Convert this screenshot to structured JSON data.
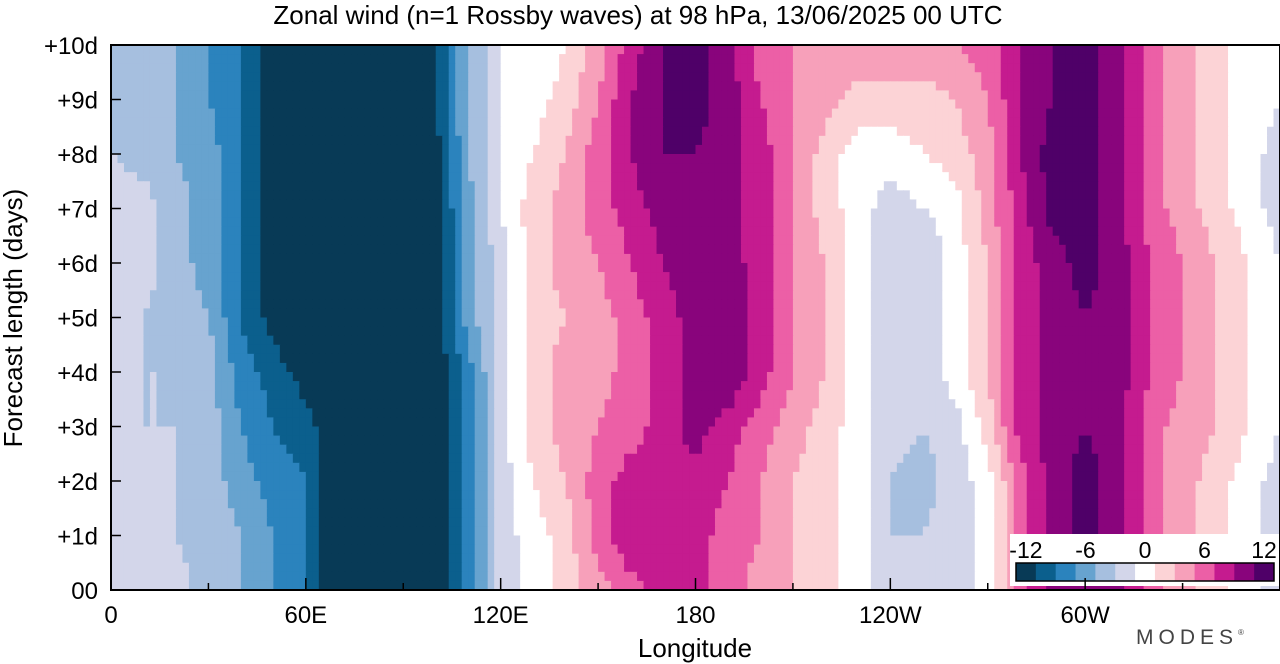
{
  "chart_data": {
    "type": "heatmap",
    "title": "Zonal wind (n=1 Rossby waves) at 98 hPa,  13/06/2025  00 UTC",
    "xlabel": "Longitude",
    "ylabel": "Forecast length (days)",
    "x_ticks": [
      {
        "lon": 0,
        "label": "0"
      },
      {
        "lon": 60,
        "label": "60E"
      },
      {
        "lon": 120,
        "label": "120E"
      },
      {
        "lon": 180,
        "label": "180"
      },
      {
        "lon": 240,
        "label": "120W"
      },
      {
        "lon": 300,
        "label": "60W"
      }
    ],
    "y_ticks": [
      "00",
      "+1d",
      "+2d",
      "+3d",
      "+4d",
      "+5d",
      "+6d",
      "+7d",
      "+8d",
      "+9d",
      "+10d"
    ],
    "xlim": [
      0,
      360
    ],
    "ylim": [
      0,
      10
    ],
    "colorbar": {
      "levels": [
        -12,
        -10,
        -8,
        -6,
        -4,
        -2,
        0,
        2,
        4,
        6,
        8,
        10,
        12
      ],
      "labels": [
        {
          "value": -12,
          "text": "-12"
        },
        {
          "value": -6,
          "text": "-6"
        },
        {
          "value": 0,
          "text": "0"
        },
        {
          "value": 6,
          "text": "6"
        },
        {
          "value": 12,
          "text": "12"
        }
      ],
      "colors": [
        "#083a56",
        "#0b5f8d",
        "#2b83bd",
        "#67a3cf",
        "#a6bfdf",
        "#d3d6ea",
        "#ffffff",
        "#fcd3d6",
        "#f7a0ba",
        "#ec5fa6",
        "#c51b8f",
        "#89047c",
        "#4f0068"
      ]
    },
    "days": [
      0,
      1,
      2,
      3,
      4,
      5,
      6,
      7,
      8,
      9,
      10
    ],
    "lon_axis": [
      0,
      10,
      20,
      30,
      40,
      50,
      60,
      70,
      80,
      90,
      100,
      110,
      120,
      130,
      140,
      150,
      160,
      170,
      180,
      190,
      200,
      210,
      220,
      230,
      240,
      250,
      260,
      270,
      280,
      290,
      300,
      310,
      320,
      330,
      340,
      350,
      360
    ],
    "values": [
      [
        -2,
        -2,
        -2,
        -4,
        -5,
        -7,
        -9,
        -13,
        -13,
        -13,
        -13,
        -8,
        -2,
        0,
        2,
        4,
        6,
        8,
        8,
        6,
        4,
        3,
        2,
        0,
        -2,
        -2,
        -2,
        0,
        6,
        10,
        11,
        10,
        6,
        4,
        2,
        0,
        -2
      ],
      [
        -2,
        -2,
        -3,
        -4,
        -5,
        -7,
        -9,
        -13,
        -13,
        -13,
        -13,
        -8,
        -2,
        0,
        2,
        6,
        9,
        8,
        8,
        6,
        5,
        3,
        2,
        0,
        -3,
        -3,
        -2,
        0,
        6,
        10,
        12,
        10,
        6,
        4,
        2,
        0,
        -2
      ],
      [
        -2,
        -2,
        -3,
        -4,
        -6,
        -8,
        -9,
        -13,
        -13,
        -13,
        -13,
        -8,
        -2,
        1,
        3,
        6,
        8,
        8,
        8,
        7,
        5,
        3,
        2,
        0,
        -3,
        -4,
        -2,
        0,
        6,
        10,
        12,
        10,
        6,
        4,
        2,
        0,
        -2
      ],
      [
        -2,
        -3,
        -3,
        -4,
        -7,
        -9,
        -10,
        -13,
        -13,
        -13,
        -13,
        -8,
        -2,
        2,
        4,
        5,
        6,
        8,
        10,
        8,
        6,
        4,
        2,
        0,
        -2,
        -3,
        -2,
        2,
        8,
        10,
        11,
        10,
        6,
        4,
        3,
        1,
        -1
      ],
      [
        -2,
        -3,
        -3,
        -4,
        -8,
        -10,
        -12,
        -13,
        -13,
        -13,
        -13,
        -8,
        -2,
        2,
        4,
        4,
        6,
        8,
        10,
        11,
        8,
        5,
        3,
        0,
        -2,
        -2,
        0,
        3,
        8,
        10,
        11,
        10,
        7,
        5,
        3,
        1,
        -1
      ],
      [
        -2,
        -3,
        -4,
        -5,
        -9,
        -12,
        -13,
        -13,
        -13,
        -13,
        -12,
        -6,
        -2,
        2,
        3,
        4,
        6,
        8,
        10,
        11,
        8,
        5,
        3,
        0,
        -3,
        -2,
        0,
        3,
        8,
        10,
        11,
        10,
        7,
        5,
        3,
        1,
        -1
      ],
      [
        -2,
        -2,
        -4,
        -6,
        -9,
        -12,
        -13,
        -13,
        -13,
        -13,
        -12,
        -6,
        -2,
        2,
        4,
        5,
        7,
        9,
        10,
        10,
        8,
        5,
        3,
        0,
        -3,
        -3,
        0,
        3,
        8,
        10,
        12,
        10,
        7,
        5,
        3,
        1,
        -1
      ],
      [
        -1,
        -2,
        -4,
        -6,
        -9,
        -12,
        -13,
        -13,
        -13,
        -13,
        -12,
        -6,
        -1,
        2,
        4,
        6,
        8,
        10,
        11,
        10,
        8,
        5,
        2,
        0,
        -2,
        -1,
        0,
        4,
        8,
        12,
        12,
        10,
        6,
        4,
        2,
        0,
        -2
      ],
      [
        -3,
        -4,
        -5,
        -6,
        -9,
        -12,
        -13,
        -13,
        -13,
        -13,
        -12,
        -5,
        -1,
        1,
        3,
        6,
        9,
        11,
        11,
        10,
        8,
        5,
        2,
        0,
        0,
        1,
        2,
        4,
        9,
        12,
        12,
        10,
        6,
        4,
        2,
        0,
        -2
      ],
      [
        -4,
        -4,
        -5,
        -7,
        -9,
        -12,
        -13,
        -13,
        -13,
        -13,
        -11,
        -5,
        -1,
        0,
        2,
        5,
        9,
        11,
        12,
        10,
        7,
        5,
        4,
        2,
        2,
        2,
        3,
        5,
        9,
        11,
        12,
        10,
        6,
        4,
        2,
        0,
        -1
      ],
      [
        -4,
        -4,
        -5,
        -7,
        -9,
        -12,
        -13,
        -13,
        -13,
        -13,
        -11,
        -5,
        -1,
        -1,
        1,
        4,
        8,
        11,
        12,
        10,
        6,
        5,
        5,
        5,
        5,
        5,
        5,
        6,
        9,
        11,
        12,
        10,
        6,
        4,
        2,
        0,
        -1
      ]
    ]
  },
  "brand": {
    "text": "MODES",
    "mark": "®"
  }
}
